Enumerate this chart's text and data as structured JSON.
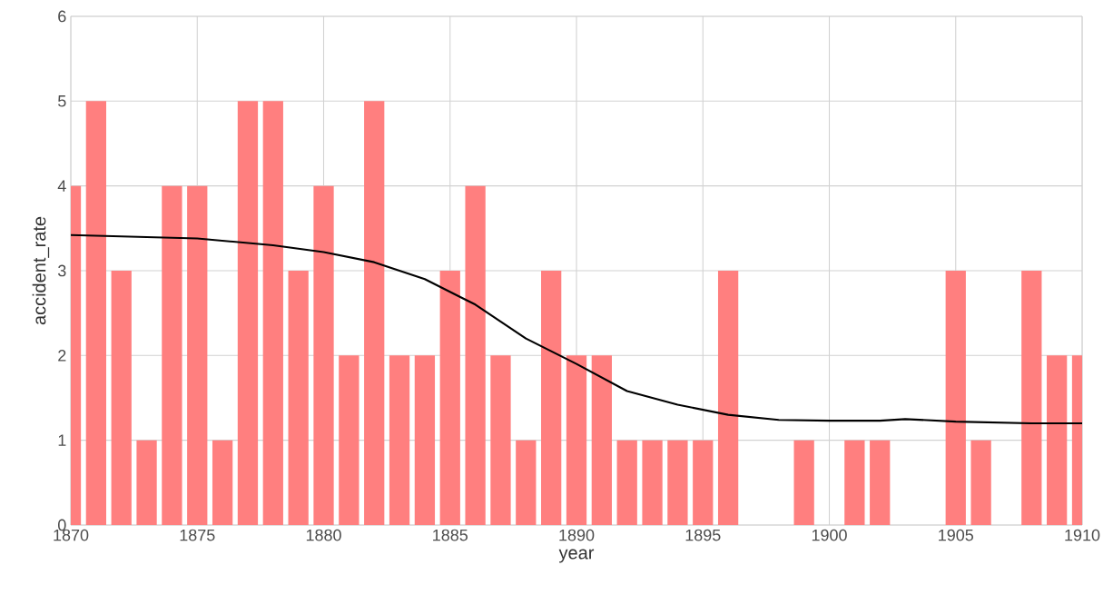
{
  "chart_data": {
    "type": "bar",
    "xlabel": "year",
    "ylabel": "accident_rate",
    "xlim": [
      1870,
      1910
    ],
    "xticks": [
      1870,
      1875,
      1880,
      1885,
      1890,
      1895,
      1900,
      1905,
      1910
    ],
    "ylim": [
      0,
      6
    ],
    "yticks": [
      0,
      1,
      2,
      3,
      4,
      5,
      6
    ],
    "grid": true,
    "series": [
      {
        "type": "bar",
        "color": "#ff7f7f",
        "x": [
          1870,
          1871,
          1872,
          1873,
          1874,
          1875,
          1876,
          1877,
          1878,
          1879,
          1880,
          1881,
          1882,
          1883,
          1884,
          1885,
          1886,
          1887,
          1888,
          1889,
          1890,
          1891,
          1892,
          1893,
          1894,
          1895,
          1896,
          1897,
          1898,
          1899,
          1900,
          1901,
          1902,
          1903,
          1904,
          1905,
          1906,
          1907,
          1908,
          1909,
          1910
        ],
        "values": [
          4,
          5,
          3,
          1,
          4,
          4,
          1,
          5,
          5,
          3,
          4,
          2,
          5,
          2,
          2,
          3,
          4,
          2,
          1,
          3,
          2,
          2,
          1,
          1,
          1,
          1,
          3,
          0,
          0,
          1,
          0,
          1,
          1,
          0,
          0,
          3,
          1,
          0,
          3,
          2,
          2
        ]
      },
      {
        "type": "line",
        "color": "#000000",
        "x": [
          1870,
          1875,
          1878,
          1880,
          1882,
          1884,
          1886,
          1888,
          1890,
          1892,
          1894,
          1896,
          1898,
          1900,
          1902,
          1903,
          1905,
          1908,
          1910
        ],
        "values": [
          3.42,
          3.38,
          3.3,
          3.22,
          3.1,
          2.9,
          2.6,
          2.2,
          1.9,
          1.58,
          1.42,
          1.3,
          1.24,
          1.23,
          1.23,
          1.25,
          1.22,
          1.2,
          1.2
        ]
      }
    ]
  }
}
